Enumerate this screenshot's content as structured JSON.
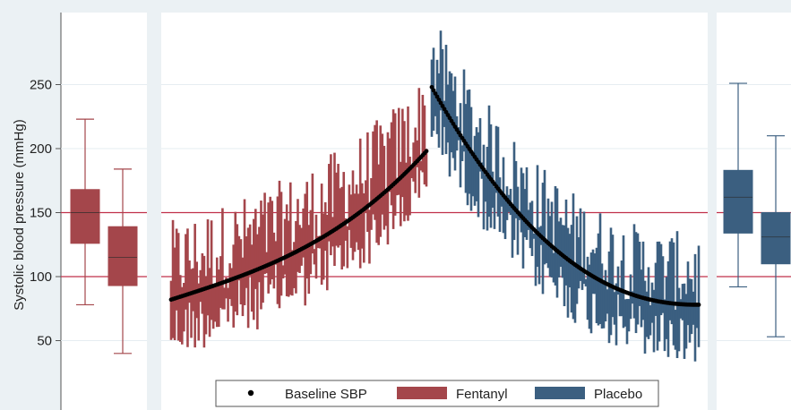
{
  "chart_data": {
    "type": "box+range",
    "ylabel": "Systolic blood pressure (mmHg)",
    "yticks": [
      50,
      100,
      150,
      200,
      250
    ],
    "ylim": [
      35,
      260
    ],
    "reference_lines": [
      100,
      150
    ],
    "colors": {
      "fentanyl": "#a4464b",
      "placebo": "#3b5f80",
      "baseline": "#000000",
      "reference": "#c0304a",
      "panel_bg": "#ebf1f4"
    },
    "legend": {
      "position": "bottom",
      "items": [
        {
          "label": "Baseline SBP",
          "symbol": "dot",
          "color": "#000000"
        },
        {
          "label": "Fentanyl",
          "symbol": "swatch",
          "color": "#a4464b"
        },
        {
          "label": "Placebo",
          "symbol": "swatch",
          "color": "#3b5f80"
        }
      ]
    },
    "box_panels": [
      {
        "side": "left",
        "color": "#a4464b",
        "boxes": [
          {
            "whisker_low": 78,
            "q1": 126,
            "median": 150,
            "q3": 168,
            "whisker_high": 223
          },
          {
            "whisker_low": 40,
            "q1": 93,
            "median": 115,
            "q3": 139,
            "whisker_high": 184
          }
        ]
      },
      {
        "side": "right",
        "color": "#3b5f80",
        "boxes": [
          {
            "whisker_low": 92,
            "q1": 134,
            "median": 162,
            "q3": 183,
            "whisker_high": 251
          },
          {
            "whisker_low": 53,
            "q1": 110,
            "median": 131,
            "q3": 150,
            "whisker_high": 210
          }
        ]
      }
    ],
    "range_panel": {
      "description": "Per-patient intraoperative SBP range bars sorted by baseline SBP",
      "fentanyl": {
        "n": 140,
        "baseline_start": 82,
        "baseline_end": 198,
        "min_below_baseline": [
          2,
          47
        ],
        "max_above_baseline": [
          -6,
          62
        ]
      },
      "placebo": {
        "n": 150,
        "baseline_start": 248,
        "baseline_end": 78,
        "min_below_baseline": [
          4,
          47
        ],
        "max_above_baseline": [
          -6,
          57
        ]
      }
    }
  }
}
